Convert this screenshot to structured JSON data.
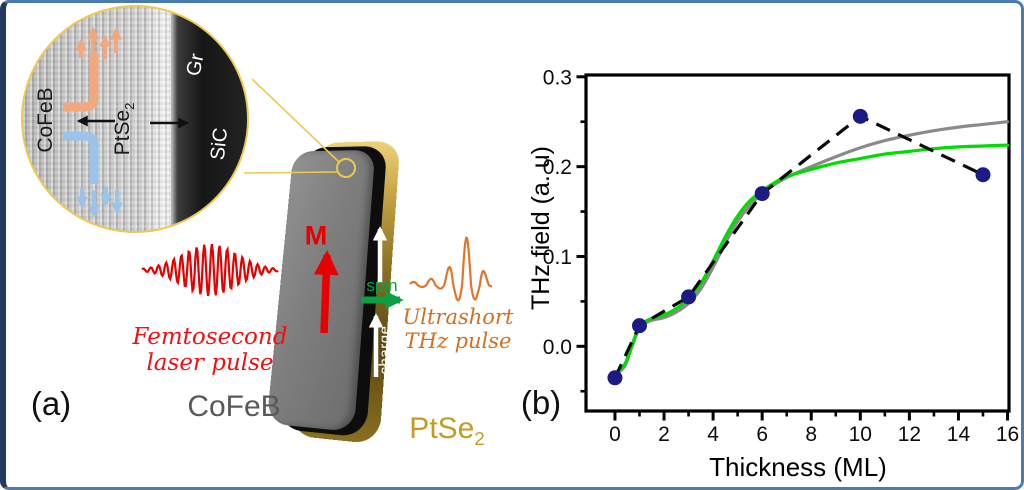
{
  "figure": {
    "panel_a": "(a)",
    "panel_b": "(b)"
  },
  "inset": {
    "cofeb": "CoFeB",
    "ptse2_base": "PtSe",
    "ptse2_sub": "2",
    "gr": "Gr",
    "sic": "SiC"
  },
  "device": {
    "magnetization": "M",
    "spin": "spin",
    "charge": "charge",
    "cofeb": "CoFeB",
    "ptse2_base": "PtSe",
    "ptse2_sub": "2",
    "laser_line1": "Femtosecond",
    "laser_line2": "laser pulse",
    "thz_line1": "Ultrashort",
    "thz_line2": "THz pulse"
  },
  "colors": {
    "laser_red": "#e60000",
    "thz_orange": "#d2701e",
    "gold_outline": "#eec851",
    "spin_green": "#0aa043",
    "gray_label": "#595959",
    "majority_spin_arrows": "#f2a87e",
    "minority_spin_arrows": "#9cc3ea",
    "data_point": "#1b1b83",
    "fit_gray": "#8a8a8a",
    "fit_green": "#00dc00",
    "border_blue": "#4e7bae"
  },
  "chart_data": {
    "type": "scatter",
    "title": "",
    "xlabel": "Thickness (ML)",
    "ylabel": "THz field (a. u)",
    "xlim": [
      -1.18,
      16.06
    ],
    "ylim": [
      -0.072,
      0.302
    ],
    "x_major_ticks": [
      0,
      2,
      4,
      6,
      8,
      10,
      12,
      14,
      16
    ],
    "x_minor_ticks": [
      1,
      3,
      5,
      7,
      9,
      11,
      13,
      15
    ],
    "y_major_ticks": [
      0.0,
      0.1,
      0.2,
      0.3
    ],
    "y_minor_ticks": [
      -0.05,
      0.05,
      0.15,
      0.25
    ],
    "grid": false,
    "legend": "none",
    "series": [
      {
        "name": "measured-points",
        "type": "scatter",
        "color": "#1b1b83",
        "marker_size": 7.5,
        "connect": "dashed-black",
        "x": [
          0,
          1,
          3,
          6,
          10,
          15
        ],
        "y": [
          -0.035,
          0.023,
          0.055,
          0.17,
          0.256,
          0.191
        ]
      },
      {
        "name": "fit-gray",
        "type": "line",
        "color": "#8a8a8a",
        "x": [
          0,
          0.4,
          0.7,
          1,
          1.4,
          2,
          2.5,
          3,
          3.5,
          4,
          4.5,
          5,
          5.5,
          6,
          6.5,
          7,
          8,
          9,
          10,
          11,
          12,
          13,
          14,
          15,
          16
        ],
        "y": [
          -0.032,
          -0.022,
          0.0,
          0.02,
          0.028,
          0.032,
          0.038,
          0.048,
          0.064,
          0.088,
          0.115,
          0.139,
          0.157,
          0.17,
          0.18,
          0.188,
          0.2,
          0.211,
          0.221,
          0.229,
          0.235,
          0.24,
          0.244,
          0.247,
          0.25
        ]
      },
      {
        "name": "fit-green",
        "type": "line",
        "color": "#00dc00",
        "x": [
          0,
          0.4,
          0.7,
          1,
          1.4,
          2,
          2.5,
          3,
          3.5,
          4,
          4.5,
          5,
          5.5,
          6,
          6.5,
          7,
          8,
          9,
          10,
          11,
          12,
          13,
          14,
          15,
          16
        ],
        "y": [
          -0.03,
          -0.02,
          0.002,
          0.022,
          0.03,
          0.035,
          0.042,
          0.053,
          0.07,
          0.095,
          0.122,
          0.145,
          0.162,
          0.173,
          0.182,
          0.189,
          0.197,
          0.204,
          0.209,
          0.214,
          0.217,
          0.22,
          0.222,
          0.223,
          0.224
        ]
      }
    ]
  }
}
